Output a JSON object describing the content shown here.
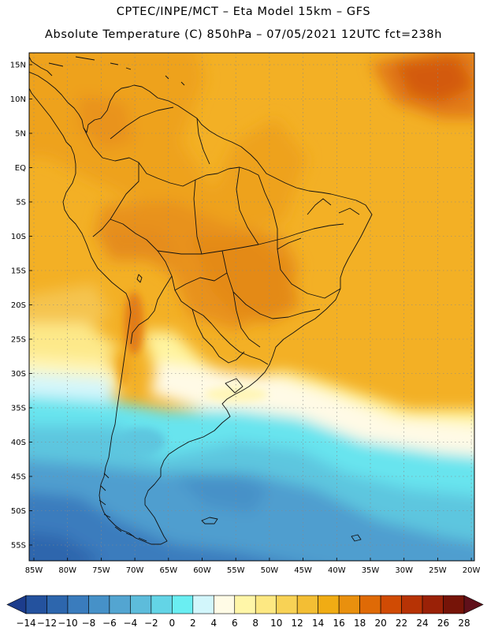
{
  "title_line1": "CPTEC/INPE/MCT –  Eta Model 15km – GFS",
  "title_line2": "Absolute Temperature (C) 850hPa – 07/05/2021 12UTC fct=238h",
  "lat_labels": [
    "15N",
    "10N",
    "5N",
    "EQ",
    "5S",
    "10S",
    "15S",
    "20S",
    "25S",
    "30S",
    "35S",
    "40S",
    "45S",
    "50S",
    "55S"
  ],
  "lat_values": [
    15,
    10,
    5,
    0,
    -5,
    -10,
    -15,
    -20,
    -25,
    -30,
    -35,
    -40,
    -45,
    -50,
    -55
  ],
  "lon_labels": [
    "85W",
    "80W",
    "75W",
    "70W",
    "65W",
    "60W",
    "55W",
    "50W",
    "45W",
    "40W",
    "35W",
    "30W",
    "25W",
    "20W"
  ],
  "lon_values": [
    -85,
    -80,
    -75,
    -70,
    -65,
    -60,
    -55,
    -50,
    -45,
    -40,
    -35,
    -30,
    -25,
    -20
  ],
  "colorbar": {
    "labels": [
      "−14",
      "−12",
      "−10",
      "−8",
      "−6",
      "−4",
      "−2",
      "0",
      "2",
      "4",
      "6",
      "8",
      "10",
      "12",
      "14",
      "16",
      "18",
      "20",
      "22",
      "24",
      "26",
      "28"
    ],
    "colors": [
      "#1c3c8c",
      "#24529e",
      "#2d66ad",
      "#3a7cbd",
      "#4691c8",
      "#53a5d1",
      "#5dbcdb",
      "#63d4e6",
      "#6aeef2",
      "#d2f6fb",
      "#fffbe6",
      "#fff6a8",
      "#fde882",
      "#f8d255",
      "#f3be34",
      "#f0ac14",
      "#e9900e",
      "#df6a06",
      "#d04b04",
      "#b73305",
      "#9a2107",
      "#761408",
      "#60101a"
    ]
  }
}
